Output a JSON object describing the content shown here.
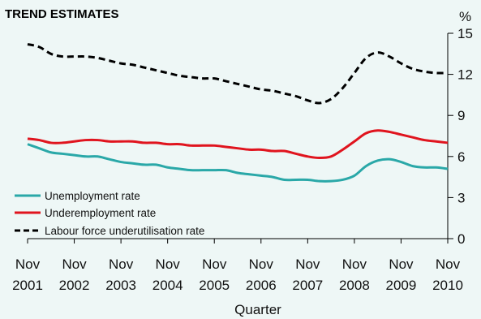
{
  "chart_data": {
    "type": "line",
    "title": "TREND ESTIMATES",
    "xlabel": "Quarter",
    "ylabel": "%",
    "ylim": [
      0,
      15
    ],
    "yticks": [
      0,
      3,
      6,
      9,
      12,
      15
    ],
    "x_tick_labels": [
      {
        "month": "Nov",
        "year": "2001"
      },
      {
        "month": "Nov",
        "year": "2002"
      },
      {
        "month": "Nov",
        "year": "2003"
      },
      {
        "month": "Nov",
        "year": "2004"
      },
      {
        "month": "Nov",
        "year": "2005"
      },
      {
        "month": "Nov",
        "year": "2006"
      },
      {
        "month": "Nov",
        "year": "2007"
      },
      {
        "month": "Nov",
        "year": "2008"
      },
      {
        "month": "Nov",
        "year": "2009"
      },
      {
        "month": "Nov",
        "year": "2010"
      }
    ],
    "x": [
      "Nov 2001",
      "Feb 2002",
      "May 2002",
      "Aug 2002",
      "Nov 2002",
      "Feb 2003",
      "May 2003",
      "Aug 2003",
      "Nov 2003",
      "Feb 2004",
      "May 2004",
      "Aug 2004",
      "Nov 2004",
      "Feb 2005",
      "May 2005",
      "Aug 2005",
      "Nov 2005",
      "Feb 2006",
      "May 2006",
      "Aug 2006",
      "Nov 2006",
      "Feb 2007",
      "May 2007",
      "Aug 2007",
      "Nov 2007",
      "Feb 2008",
      "May 2008",
      "Aug 2008",
      "Nov 2008",
      "Feb 2009",
      "May 2009",
      "Aug 2009",
      "Nov 2009",
      "Feb 2010",
      "May 2010",
      "Aug 2010",
      "Nov 2010"
    ],
    "grid": false,
    "legend_position": "bottom-left",
    "series": [
      {
        "name": "Unemployment rate",
        "color": "#2aa8a8",
        "dash": "solid",
        "values": [
          6.9,
          6.6,
          6.3,
          6.2,
          6.1,
          6.0,
          6.0,
          5.8,
          5.6,
          5.5,
          5.4,
          5.4,
          5.2,
          5.1,
          5.0,
          5.0,
          5.0,
          5.0,
          4.8,
          4.7,
          4.6,
          4.5,
          4.3,
          4.3,
          4.3,
          4.2,
          4.2,
          4.3,
          4.6,
          5.3,
          5.7,
          5.8,
          5.6,
          5.3,
          5.2,
          5.2,
          5.1
        ]
      },
      {
        "name": "Underemployment rate",
        "color": "#e0141e",
        "dash": "solid",
        "values": [
          7.3,
          7.2,
          7.0,
          7.0,
          7.1,
          7.2,
          7.2,
          7.1,
          7.1,
          7.1,
          7.0,
          7.0,
          6.9,
          6.9,
          6.8,
          6.8,
          6.8,
          6.7,
          6.6,
          6.5,
          6.5,
          6.4,
          6.4,
          6.2,
          6.0,
          5.9,
          6.0,
          6.5,
          7.1,
          7.7,
          7.9,
          7.8,
          7.6,
          7.4,
          7.2,
          7.1,
          7.0
        ]
      },
      {
        "name": "Labour force underutilisation rate",
        "color": "#000000",
        "dash": "dashed",
        "values": [
          14.2,
          14.0,
          13.5,
          13.3,
          13.3,
          13.3,
          13.2,
          13.0,
          12.8,
          12.7,
          12.5,
          12.3,
          12.1,
          11.9,
          11.8,
          11.7,
          11.7,
          11.5,
          11.3,
          11.1,
          10.9,
          10.8,
          10.6,
          10.4,
          10.1,
          9.9,
          10.2,
          11.0,
          12.1,
          13.2,
          13.6,
          13.3,
          12.8,
          12.4,
          12.2,
          12.1,
          12.1
        ]
      }
    ]
  }
}
